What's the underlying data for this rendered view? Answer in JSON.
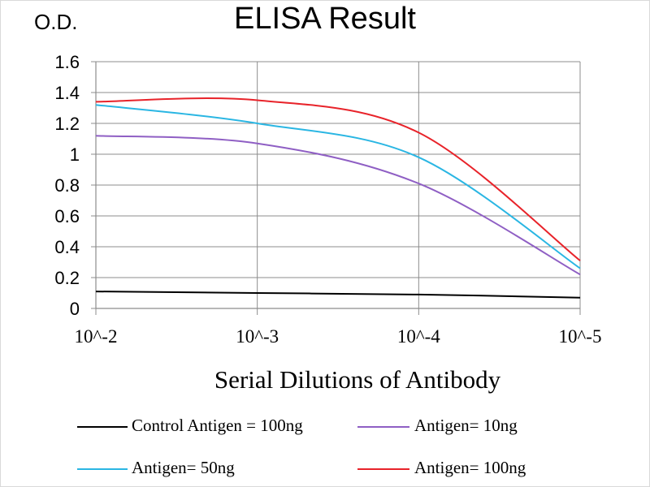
{
  "chart_data": {
    "type": "line",
    "title": "ELISA Result",
    "ylabel": "O.D.",
    "xlabel": "Serial Dilutions  of Antibody",
    "x_ticks": [
      "10^-2",
      "10^-3",
      "10^-4",
      "10^-5"
    ],
    "x": [
      0.01,
      0.001,
      0.0001,
      1e-05
    ],
    "ylim": [
      0,
      1.6
    ],
    "y_ticks": [
      "0",
      "0.2",
      "0.4",
      "0.6",
      "0.8",
      "1",
      "1.2",
      "1.4",
      "1.6"
    ],
    "grid": true,
    "legend_position": "bottom",
    "series": [
      {
        "name": "Control Antigen = 100ng",
        "color": "#000000",
        "values": [
          0.11,
          0.1,
          0.09,
          0.07
        ]
      },
      {
        "name": "Antigen= 10ng",
        "color": "#8f5fc4",
        "values": [
          1.12,
          1.07,
          0.81,
          0.22
        ]
      },
      {
        "name": "Antigen= 50ng",
        "color": "#2ab6e3",
        "values": [
          1.32,
          1.2,
          0.98,
          0.26
        ]
      },
      {
        "name": "Antigen= 100ng",
        "color": "#e8232a",
        "values": [
          1.34,
          1.35,
          1.14,
          0.31
        ]
      }
    ]
  }
}
